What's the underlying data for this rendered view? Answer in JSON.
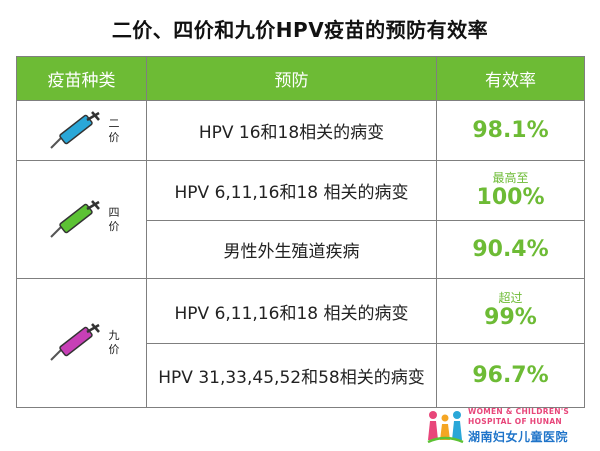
{
  "title": "二价、四价和九价HPV疫苗的预防有效率",
  "headers": {
    "type": "疫苗种类",
    "prevention": "预防",
    "efficacy": "有效率"
  },
  "rows": [
    {
      "type_label": "二\n价",
      "syringe_color": "#2aa7d8",
      "prevention": "HPV 16和18相关的病变",
      "efficacy": "98.1%",
      "note": ""
    },
    {
      "type_label": "四\n价",
      "syringe_color": "#5cc234",
      "prevention": "HPV 6,11,16和18 相关的病变",
      "efficacy": "100%",
      "note": "最高至"
    },
    {
      "prevention": "男性外生殖道疾病",
      "efficacy": "90.4%",
      "note": ""
    },
    {
      "type_label": "九\n价",
      "syringe_color": "#c73fb6",
      "prevention": "HPV 6,11,16和18 相关的病变",
      "efficacy": "99%",
      "note": "超过"
    },
    {
      "prevention": "HPV 31,33,45,52和58相关的病变",
      "efficacy": "96.7%",
      "note": ""
    }
  ],
  "logo": {
    "line1": "WOMEN & CHILDREN'S",
    "line2": "HOSPITAL OF HUNAN",
    "cn": "湖南妇女儿童医院",
    "icon": "hospital-figures-logo-icon"
  },
  "icons": {
    "syringe": "syringe-icon"
  },
  "colors": {
    "header_bg": "#6dbb35",
    "efficacy_text": "#6dbb35",
    "border": "#7f7f7f"
  }
}
